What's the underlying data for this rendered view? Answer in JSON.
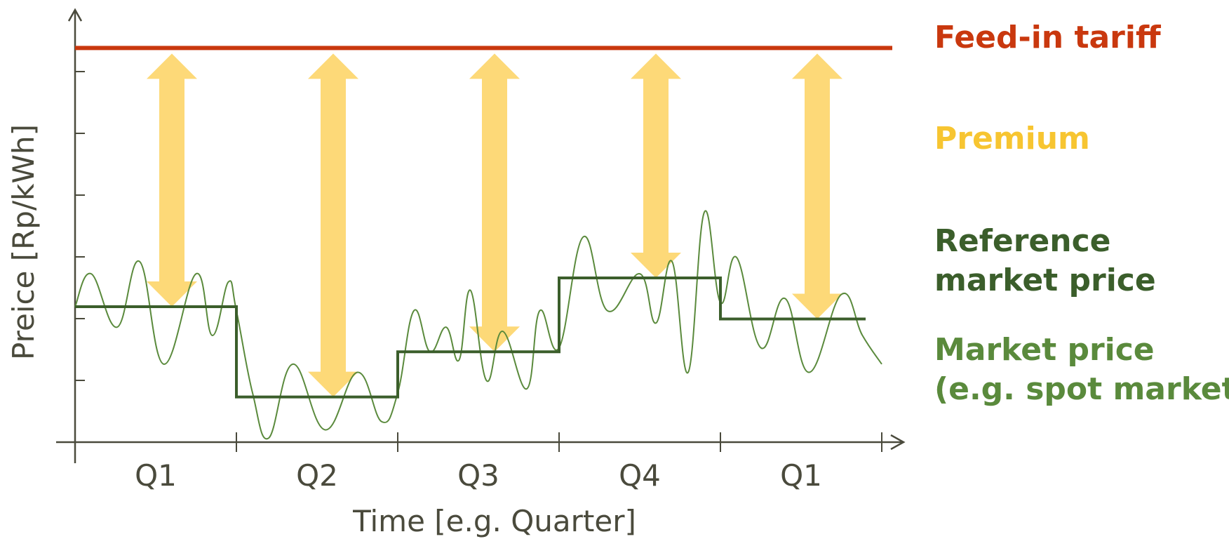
{
  "chart_data": {
    "type": "line",
    "xlabel": "Time [e.g. Quarter]",
    "ylabel": "Preice [Rp/kWh]",
    "categories": [
      "Q1",
      "Q2",
      "Q3",
      "Q4",
      "Q1"
    ],
    "ylim": [
      0,
      10
    ],
    "grid": false,
    "legend_placement": "right",
    "colors": {
      "axis": "#4a4a3c",
      "feed_in_tariff": "#c9380e",
      "premium": "#fdd978",
      "premium_text": "#f7c531",
      "reference_price": "#3b5e2b",
      "market_price": "#5a8a3c"
    },
    "feed_in_tariff": 9.6,
    "reference_price": [
      3.3,
      1.1,
      2.2,
      4.0,
      3.0
    ],
    "market_price": [
      [
        0.0,
        3.3
      ],
      [
        0.1,
        4.1
      ],
      [
        0.26,
        2.8
      ],
      [
        0.4,
        4.4
      ],
      [
        0.55,
        1.9
      ],
      [
        0.75,
        4.1
      ],
      [
        0.85,
        2.6
      ],
      [
        0.95,
        3.9
      ],
      [
        1.0,
        3.2
      ],
      [
        1.1,
        1.2
      ],
      [
        1.2,
        0.1
      ],
      [
        1.35,
        1.9
      ],
      [
        1.55,
        0.3
      ],
      [
        1.75,
        1.7
      ],
      [
        1.9,
        0.5
      ],
      [
        2.0,
        1.2
      ],
      [
        2.1,
        3.2
      ],
      [
        2.2,
        2.2
      ],
      [
        2.3,
        2.8
      ],
      [
        2.38,
        2.0
      ],
      [
        2.45,
        3.7
      ],
      [
        2.55,
        1.5
      ],
      [
        2.65,
        2.7
      ],
      [
        2.8,
        1.3
      ],
      [
        2.88,
        3.2
      ],
      [
        3.0,
        2.3
      ],
      [
        3.15,
        5.0
      ],
      [
        3.3,
        3.2
      ],
      [
        3.5,
        4.1
      ],
      [
        3.6,
        2.9
      ],
      [
        3.7,
        4.4
      ],
      [
        3.8,
        1.7
      ],
      [
        3.9,
        5.6
      ],
      [
        4.0,
        3.4
      ],
      [
        4.1,
        4.5
      ],
      [
        4.25,
        2.3
      ],
      [
        4.4,
        3.5
      ],
      [
        4.55,
        1.7
      ],
      [
        4.75,
        3.6
      ],
      [
        4.88,
        2.6
      ],
      [
        5.0,
        1.9
      ]
    ]
  },
  "legend": [
    {
      "label": "Feed-in tariff",
      "color": "#c9380e"
    },
    {
      "label": "Premium",
      "color": "#f7c531"
    },
    {
      "label": "Reference",
      "line2": "market price",
      "color": "#3b5e2b"
    },
    {
      "label": "Market price",
      "line2": "(e.g. spot market)",
      "color": "#5a8a3c"
    }
  ]
}
